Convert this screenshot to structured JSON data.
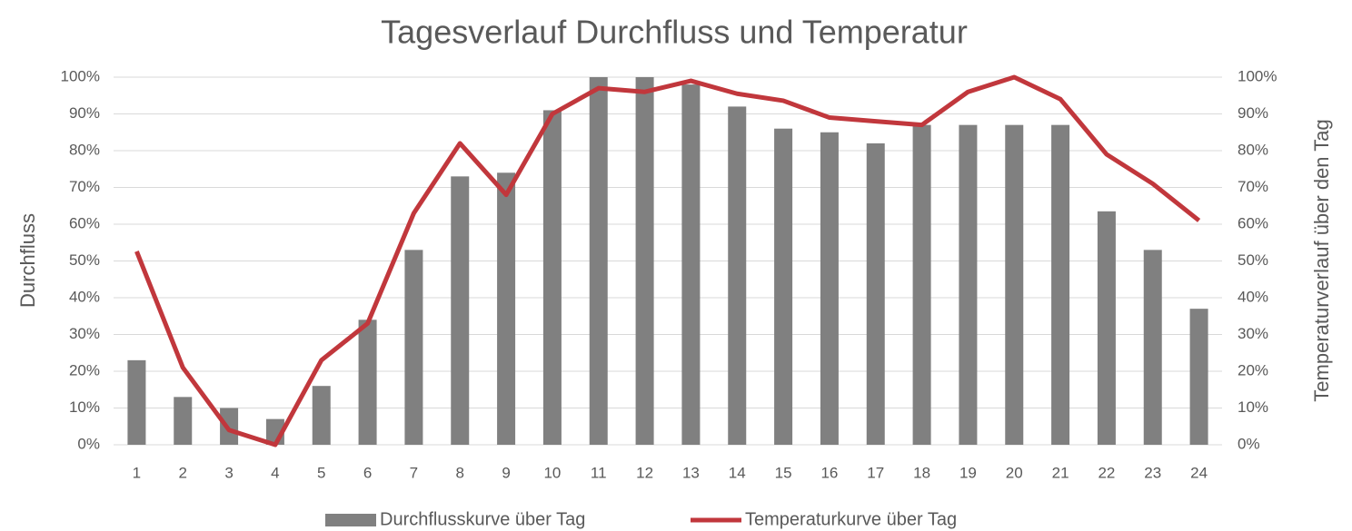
{
  "chart_data": {
    "type": "bar_line",
    "title": "Tagesverlauf Durchfluss und Temperatur",
    "y_label": "Durchfluss",
    "y2_label": "Temperaturverlauf über den Tag",
    "categories": [
      "1",
      "2",
      "3",
      "4",
      "5",
      "6",
      "7",
      "8",
      "9",
      "10",
      "11",
      "12",
      "13",
      "14",
      "15",
      "16",
      "17",
      "18",
      "19",
      "20",
      "21",
      "22",
      "23",
      "24"
    ],
    "series": [
      {
        "name": "Durchflusskurve über Tag",
        "type": "bar",
        "color": "#808080",
        "values": [
          23,
          13,
          10,
          7,
          16,
          34,
          53,
          73,
          74,
          91,
          100,
          100,
          98,
          92,
          86,
          85,
          82,
          87,
          87,
          87,
          87,
          63.5,
          53,
          37
        ]
      },
      {
        "name": "Temperaturkurve über Tag",
        "type": "line",
        "axis": "y2",
        "color": "#c1373c",
        "values": [
          52.6,
          21,
          4,
          0,
          23,
          33,
          63,
          82,
          68,
          90,
          97,
          96,
          99,
          95.5,
          93.6,
          89,
          88,
          87,
          96,
          100,
          94,
          79,
          71,
          61
        ]
      }
    ],
    "ylim": [
      0,
      100
    ],
    "yticks": [
      {
        "value": 0,
        "label": "0%"
      },
      {
        "value": 10,
        "label": "10%"
      },
      {
        "value": 20,
        "label": "20%"
      },
      {
        "value": 30,
        "label": "30%"
      },
      {
        "value": 40,
        "label": "40%"
      },
      {
        "value": 50,
        "label": "50%"
      },
      {
        "value": 60,
        "label": "60%"
      },
      {
        "value": 70,
        "label": "70%"
      },
      {
        "value": 80,
        "label": "80%"
      },
      {
        "value": 90,
        "label": "90%"
      },
      {
        "value": 100,
        "label": "100%"
      }
    ],
    "y2lim": [
      0,
      100
    ],
    "y2ticks": [
      {
        "value": 0,
        "label": "0%"
      },
      {
        "value": 10,
        "label": "10%"
      },
      {
        "value": 20,
        "label": "20%"
      },
      {
        "value": 30,
        "label": "30%"
      },
      {
        "value": 40,
        "label": "40%"
      },
      {
        "value": 50,
        "label": "50%"
      },
      {
        "value": 60,
        "label": "60%"
      },
      {
        "value": 70,
        "label": "70%"
      },
      {
        "value": 80,
        "label": "80%"
      },
      {
        "value": 90,
        "label": "90%"
      },
      {
        "value": 100,
        "label": "100%"
      }
    ],
    "grid": true,
    "legend": "bottom"
  }
}
